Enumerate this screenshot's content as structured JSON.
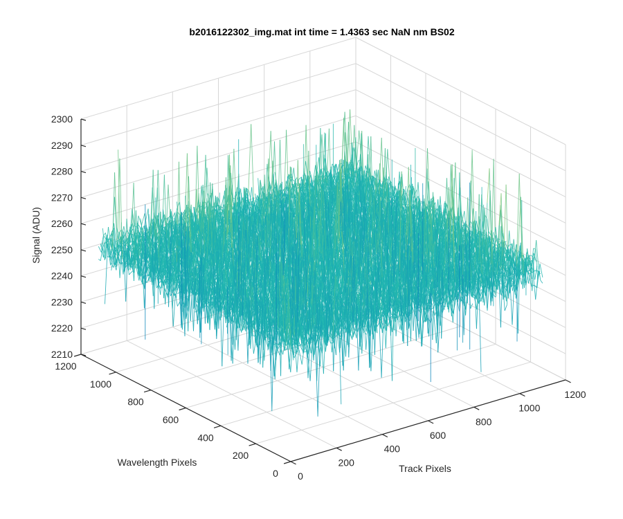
{
  "chart_data": {
    "type": "surface3d",
    "title": "b2016122302_img.mat int time = 1.4363 sec  NaN nm BS02",
    "xlabel": "Track Pixels",
    "ylabel": "Wavelength Pixels",
    "zlabel": "Signal (ADU)",
    "xlim": [
      0,
      1200
    ],
    "ylim": [
      0,
      1200
    ],
    "zlim": [
      2210,
      2300
    ],
    "xticks": [
      "0",
      "200",
      "400",
      "600",
      "800",
      "1000",
      "1200"
    ],
    "yticks": [
      "0",
      "200",
      "400",
      "600",
      "800",
      "1000",
      "1200"
    ],
    "zticks": [
      "2210",
      "2220",
      "2230",
      "2240",
      "2250",
      "2260",
      "2270",
      "2280",
      "2290",
      "2300"
    ],
    "grid": true,
    "colormap": "parula",
    "surface_extent": {
      "x": [
        0,
        1100
      ],
      "y": [
        0,
        1100
      ]
    },
    "surface_mean": 2255,
    "surface_noise_range": [
      2212,
      2298
    ],
    "colors": {
      "low": "#0072BD",
      "mid": "#21B8B0",
      "high": "#E6D84A"
    }
  }
}
